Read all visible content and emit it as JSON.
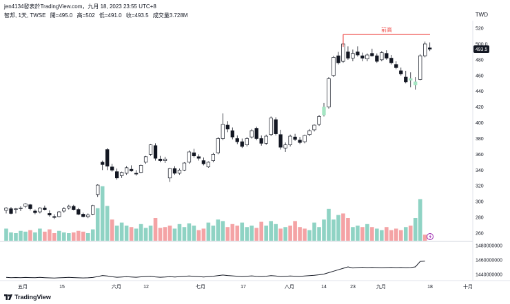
{
  "header": {
    "title": "jen4134發表於TradingView.com，九月 18, 2023 23:55 UTC+8"
  },
  "symbol": {
    "name": "智邦, 1天, TWSE",
    "open": "開=495.0",
    "high": "高=502",
    "low": "低=491.0",
    "close": "收=493.5",
    "volume": "成交量3.728M"
  },
  "currency": "TWD",
  "last_price_label": "493.5",
  "annotation_label": "前高",
  "footer": {
    "brand": "TradingView"
  },
  "colors": {
    "up_candle": "#ffffff",
    "down_candle": "#131722",
    "highlight_candle": "#a5e6c3",
    "volume_up": "#8fd3c4",
    "volume_down": "#f4a3a5",
    "annotation_line": "#ef5350",
    "line": "#131722"
  },
  "chart_data": [
    {
      "type": "candlestick",
      "ylim": [
        250,
        525
      ],
      "y_ticks": [
        "520",
        "500.0",
        "480",
        "460",
        "440",
        "420",
        "400",
        "380",
        "360",
        "340",
        "320",
        "300",
        "280",
        "260"
      ],
      "x_ticks": [
        "五月",
        "15",
        "六月",
        "12",
        "七月",
        "17",
        "八月",
        "14",
        "23",
        "九月",
        "18",
        "十月"
      ],
      "annotation": {
        "label": "前高",
        "price": 512
      },
      "candles": [
        {
          "o": 289,
          "h": 293,
          "l": 285,
          "c": 292
        },
        {
          "o": 291,
          "h": 293,
          "l": 284,
          "c": 285
        },
        {
          "o": 290,
          "h": 292,
          "l": 285,
          "c": 291
        },
        {
          "o": 291,
          "h": 294,
          "l": 288,
          "c": 292
        },
        {
          "o": 294,
          "h": 298,
          "l": 292,
          "c": 297
        },
        {
          "o": 296,
          "h": 297,
          "l": 289,
          "c": 291
        },
        {
          "o": 288,
          "h": 290,
          "l": 284,
          "c": 286
        },
        {
          "o": 287,
          "h": 293,
          "l": 285,
          "c": 292
        },
        {
          "o": 292,
          "h": 295,
          "l": 289,
          "c": 290
        },
        {
          "o": 285,
          "h": 289,
          "l": 281,
          "c": 283
        },
        {
          "o": 281,
          "h": 284,
          "l": 278,
          "c": 280
        },
        {
          "o": 281,
          "h": 288,
          "l": 280,
          "c": 287
        },
        {
          "o": 288,
          "h": 293,
          "l": 286,
          "c": 291
        },
        {
          "o": 292,
          "h": 296,
          "l": 290,
          "c": 294
        },
        {
          "o": 294,
          "h": 296,
          "l": 289,
          "c": 290
        },
        {
          "o": 290,
          "h": 292,
          "l": 283,
          "c": 284
        },
        {
          "o": 284,
          "h": 286,
          "l": 280,
          "c": 281
        },
        {
          "o": 281,
          "h": 285,
          "l": 279,
          "c": 283
        },
        {
          "o": 284,
          "h": 296,
          "l": 283,
          "c": 295
        },
        {
          "o": 309,
          "h": 322,
          "l": 306,
          "c": 321
        },
        {
          "o": 350,
          "h": 352,
          "l": 340,
          "c": 347
        },
        {
          "o": 366,
          "h": 368,
          "l": 340,
          "c": 345
        },
        {
          "o": 344,
          "h": 348,
          "l": 338,
          "c": 340
        },
        {
          "o": 338,
          "h": 342,
          "l": 328,
          "c": 330
        },
        {
          "o": 333,
          "h": 338,
          "l": 330,
          "c": 337
        },
        {
          "o": 336,
          "h": 345,
          "l": 334,
          "c": 343
        },
        {
          "o": 341,
          "h": 346,
          "l": 338,
          "c": 339
        },
        {
          "o": 336,
          "h": 340,
          "l": 333,
          "c": 335
        },
        {
          "o": 337,
          "h": 347,
          "l": 336,
          "c": 346
        },
        {
          "o": 350,
          "h": 358,
          "l": 348,
          "c": 357
        },
        {
          "o": 360,
          "h": 373,
          "l": 358,
          "c": 372
        },
        {
          "o": 371,
          "h": 374,
          "l": 352,
          "c": 355
        },
        {
          "o": 354,
          "h": 358,
          "l": 350,
          "c": 352
        },
        {
          "o": 352,
          "h": 357,
          "l": 349,
          "c": 354
        },
        {
          "o": 330,
          "h": 343,
          "l": 325,
          "c": 342
        },
        {
          "o": 342,
          "h": 345,
          "l": 334,
          "c": 336
        },
        {
          "o": 336,
          "h": 342,
          "l": 334,
          "c": 340
        },
        {
          "o": 340,
          "h": 350,
          "l": 339,
          "c": 349
        },
        {
          "o": 350,
          "h": 365,
          "l": 348,
          "c": 363
        },
        {
          "o": 362,
          "h": 367,
          "l": 356,
          "c": 358
        },
        {
          "o": 357,
          "h": 360,
          "l": 352,
          "c": 355
        },
        {
          "o": 352,
          "h": 356,
          "l": 346,
          "c": 348
        },
        {
          "o": 344,
          "h": 351,
          "l": 343,
          "c": 350
        },
        {
          "o": 352,
          "h": 362,
          "l": 350,
          "c": 360
        },
        {
          "o": 362,
          "h": 382,
          "l": 360,
          "c": 380
        },
        {
          "o": 380,
          "h": 412,
          "l": 378,
          "c": 398
        },
        {
          "o": 397,
          "h": 402,
          "l": 388,
          "c": 392
        },
        {
          "o": 390,
          "h": 394,
          "l": 379,
          "c": 382
        },
        {
          "o": 380,
          "h": 384,
          "l": 373,
          "c": 376
        },
        {
          "o": 376,
          "h": 380,
          "l": 368,
          "c": 370
        },
        {
          "o": 372,
          "h": 382,
          "l": 370,
          "c": 380
        },
        {
          "o": 382,
          "h": 392,
          "l": 380,
          "c": 390
        },
        {
          "o": 393,
          "h": 395,
          "l": 378,
          "c": 380
        },
        {
          "o": 380,
          "h": 384,
          "l": 371,
          "c": 374
        },
        {
          "o": 374,
          "h": 385,
          "l": 372,
          "c": 383
        },
        {
          "o": 385,
          "h": 408,
          "l": 383,
          "c": 406
        },
        {
          "o": 404,
          "h": 407,
          "l": 384,
          "c": 386
        },
        {
          "o": 385,
          "h": 391,
          "l": 366,
          "c": 369
        },
        {
          "o": 368,
          "h": 375,
          "l": 363,
          "c": 372
        },
        {
          "o": 372,
          "h": 385,
          "l": 370,
          "c": 383
        },
        {
          "o": 382,
          "h": 386,
          "l": 377,
          "c": 379
        },
        {
          "o": 378,
          "h": 382,
          "l": 373,
          "c": 375
        },
        {
          "o": 376,
          "h": 385,
          "l": 374,
          "c": 384
        },
        {
          "o": 385,
          "h": 392,
          "l": 383,
          "c": 390
        },
        {
          "o": 391,
          "h": 398,
          "l": 389,
          "c": 397
        },
        {
          "o": 398,
          "h": 410,
          "l": 396,
          "c": 408
        },
        {
          "o": 410,
          "h": 425,
          "l": 408,
          "c": 420
        },
        {
          "o": 420,
          "h": 458,
          "l": 418,
          "c": 456
        },
        {
          "o": 460,
          "h": 485,
          "l": 458,
          "c": 483
        },
        {
          "o": 485,
          "h": 490,
          "l": 474,
          "c": 476
        },
        {
          "o": 478,
          "h": 512,
          "l": 476,
          "c": 500
        },
        {
          "o": 490,
          "h": 497,
          "l": 480,
          "c": 482
        },
        {
          "o": 482,
          "h": 493,
          "l": 478,
          "c": 488
        },
        {
          "o": 490,
          "h": 497,
          "l": 484,
          "c": 486
        },
        {
          "o": 485,
          "h": 489,
          "l": 478,
          "c": 482
        },
        {
          "o": 481,
          "h": 488,
          "l": 478,
          "c": 486
        },
        {
          "o": 488,
          "h": 494,
          "l": 484,
          "c": 485
        },
        {
          "o": 485,
          "h": 488,
          "l": 476,
          "c": 478
        },
        {
          "o": 480,
          "h": 491,
          "l": 478,
          "c": 489
        },
        {
          "o": 488,
          "h": 492,
          "l": 480,
          "c": 482
        },
        {
          "o": 482,
          "h": 486,
          "l": 474,
          "c": 476
        },
        {
          "o": 474,
          "h": 478,
          "l": 468,
          "c": 470
        },
        {
          "o": 466,
          "h": 470,
          "l": 460,
          "c": 462
        },
        {
          "o": 458,
          "h": 466,
          "l": 450,
          "c": 452
        },
        {
          "o": 454,
          "h": 464,
          "l": 445,
          "c": 456
        },
        {
          "o": 452,
          "h": 458,
          "l": 442,
          "c": 448
        },
        {
          "o": 455,
          "h": 487,
          "l": 454,
          "c": 485
        },
        {
          "o": 485,
          "h": 503,
          "l": 483,
          "c": 500
        },
        {
          "o": 495,
          "h": 502,
          "l": 491,
          "c": 493.5
        }
      ],
      "highlight_candles": [
        66,
        84,
        85
      ],
      "volume": [
        0.16,
        0.11,
        0.1,
        0.13,
        0.12,
        0.14,
        0.11,
        0.16,
        0.12,
        0.15,
        0.1,
        0.13,
        0.11,
        0.1,
        0.11,
        0.13,
        0.12,
        0.1,
        0.15,
        0.43,
        0.72,
        0.46,
        0.28,
        0.2,
        0.24,
        0.2,
        0.18,
        0.16,
        0.22,
        0.17,
        0.2,
        0.3,
        0.17,
        0.18,
        0.2,
        0.16,
        0.22,
        0.18,
        0.23,
        0.2,
        0.14,
        0.16,
        0.24,
        0.2,
        0.28,
        0.26,
        0.18,
        0.22,
        0.2,
        0.24,
        0.18,
        0.2,
        0.17,
        0.25,
        0.2,
        0.26,
        0.22,
        0.16,
        0.18,
        0.2,
        0.26,
        0.18,
        0.16,
        0.14,
        0.24,
        0.18,
        0.28,
        0.42,
        0.28,
        0.34,
        0.36,
        0.3,
        0.18,
        0.2,
        0.18,
        0.22,
        0.18,
        0.16,
        0.14,
        0.18,
        0.14,
        0.16,
        0.14,
        0.18,
        0.2,
        0.3,
        0.55,
        0.08
      ],
      "volume_down": [
        5,
        8,
        9,
        10,
        14,
        15,
        16,
        22,
        26,
        31,
        32,
        33,
        34,
        40,
        41,
        46,
        47,
        48,
        52,
        53,
        57,
        59,
        60,
        61,
        62,
        70,
        71,
        74,
        76,
        79,
        80,
        81,
        82,
        84,
        87
      ]
    },
    {
      "type": "line",
      "y_ticks": [
        "1480000000",
        "1460000000",
        "1440000000"
      ],
      "ylim": [
        1430000000,
        1490000000
      ],
      "values": [
        1436.0,
        1435.5,
        1435.7,
        1435.4,
        1435.8,
        1435.6,
        1435.4,
        1435.9,
        1435.5,
        1435.2,
        1435.0,
        1435.3,
        1435.6,
        1435.9,
        1435.6,
        1435.3,
        1435.1,
        1435.3,
        1435.8,
        1437.0,
        1438.5,
        1437.8,
        1436.8,
        1436.1,
        1436.5,
        1436.9,
        1436.5,
        1436.1,
        1436.7,
        1437.1,
        1437.6,
        1436.6,
        1436.1,
        1436.4,
        1436.9,
        1436.4,
        1436.9,
        1437.3,
        1437.9,
        1437.4,
        1437.0,
        1436.5,
        1437.0,
        1437.5,
        1438.3,
        1439.1,
        1438.5,
        1438.0,
        1437.5,
        1437.0,
        1437.5,
        1438.0,
        1437.4,
        1437.0,
        1437.5,
        1438.3,
        1437.8,
        1437.0,
        1437.4,
        1437.9,
        1437.5,
        1437.2,
        1437.8,
        1438.3,
        1438.8,
        1439.5,
        1440.5,
        1442.5,
        1444.5,
        1446.5,
        1448.5,
        1450.5,
        1449.0,
        1449.5,
        1450.0,
        1449.5,
        1449.8,
        1449.5,
        1449.2,
        1449.5,
        1449.8,
        1449.4,
        1449.6,
        1449.3,
        1449.5,
        1450.5,
        1458.0,
        1458.5
      ]
    }
  ]
}
